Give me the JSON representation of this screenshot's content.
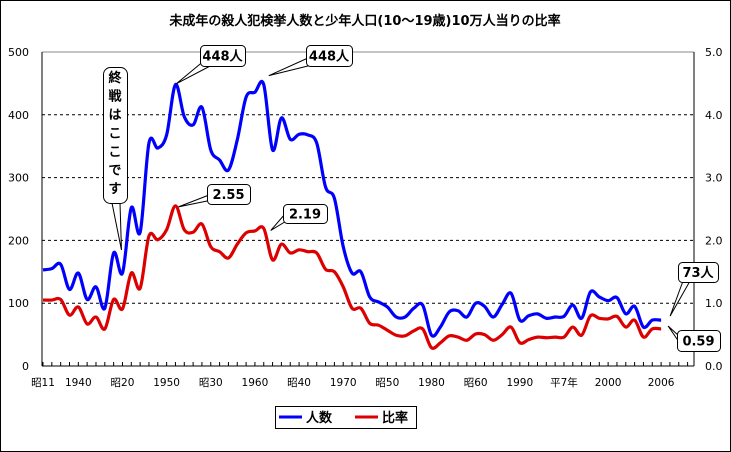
{
  "chart_data": {
    "type": "line",
    "title": "未成年の殺人犯検挙人数と少年人口(10～19歳)10万人当りの比率",
    "x": [
      1936,
      1937,
      1938,
      1939,
      1940,
      1941,
      1942,
      1943,
      1944,
      1945,
      1946,
      1947,
      1948,
      1949,
      1950,
      1951,
      1952,
      1953,
      1954,
      1955,
      1956,
      1957,
      1958,
      1959,
      1960,
      1961,
      1962,
      1963,
      1964,
      1965,
      1966,
      1967,
      1968,
      1969,
      1970,
      1971,
      1972,
      1973,
      1974,
      1975,
      1976,
      1977,
      1978,
      1979,
      1980,
      1981,
      1982,
      1983,
      1984,
      1985,
      1986,
      1987,
      1988,
      1989,
      1990,
      1991,
      1992,
      1993,
      1994,
      1995,
      1996,
      1997,
      1998,
      1999,
      2000,
      2001,
      2002,
      2003,
      2004,
      2005,
      2006
    ],
    "series": [
      {
        "name": "人数",
        "axis": "left",
        "color": "#0000ff",
        "values": [
          153,
          155,
          162,
          122,
          148,
          106,
          126,
          92,
          180,
          148,
          252,
          213,
          355,
          347,
          368,
          448,
          397,
          384,
          412,
          344,
          328,
          312,
          360,
          428,
          436,
          448,
          344,
          395,
          361,
          369,
          368,
          355,
          285,
          267,
          190,
          148,
          150,
          110,
          102,
          94,
          78,
          78,
          92,
          97,
          49,
          62,
          86,
          88,
          78,
          100,
          95,
          78,
          98,
          116,
          73,
          80,
          83,
          76,
          78,
          79,
          97,
          76,
          118,
          110,
          104,
          109,
          83,
          95,
          62,
          73,
          73
        ]
      },
      {
        "name": "比率",
        "axis": "right",
        "color": "#dd0000",
        "values": [
          1.05,
          1.05,
          1.06,
          0.81,
          0.94,
          0.67,
          0.78,
          0.59,
          1.06,
          0.91,
          1.48,
          1.24,
          2.07,
          2.01,
          2.17,
          2.55,
          2.17,
          2.13,
          2.26,
          1.9,
          1.82,
          1.72,
          1.94,
          2.12,
          2.15,
          2.19,
          1.69,
          1.94,
          1.8,
          1.85,
          1.82,
          1.8,
          1.54,
          1.5,
          1.26,
          0.92,
          0.92,
          0.68,
          0.65,
          0.57,
          0.49,
          0.48,
          0.56,
          0.59,
          0.29,
          0.37,
          0.48,
          0.46,
          0.41,
          0.51,
          0.5,
          0.41,
          0.5,
          0.62,
          0.37,
          0.42,
          0.46,
          0.45,
          0.46,
          0.46,
          0.62,
          0.49,
          0.8,
          0.76,
          0.75,
          0.79,
          0.62,
          0.73,
          0.46,
          0.59,
          0.59
        ]
      }
    ],
    "x_ticks": [
      {
        "year": 1936,
        "label": "昭11"
      },
      {
        "year": 1940,
        "label": "1940"
      },
      {
        "year": 1945,
        "label": "昭20"
      },
      {
        "year": 1950,
        "label": "1950"
      },
      {
        "year": 1955,
        "label": "昭30"
      },
      {
        "year": 1960,
        "label": "1960"
      },
      {
        "year": 1965,
        "label": "昭40"
      },
      {
        "year": 1970,
        "label": "1970"
      },
      {
        "year": 1975,
        "label": "昭50"
      },
      {
        "year": 1980,
        "label": "1980"
      },
      {
        "year": 1985,
        "label": "昭60"
      },
      {
        "year": 1990,
        "label": "1990"
      },
      {
        "year": 1995,
        "label": "平7年"
      },
      {
        "year": 2000,
        "label": "2000"
      },
      {
        "year": 2006,
        "label": "2006"
      }
    ],
    "x_range": [
      1936,
      2009
    ],
    "y_left": {
      "range": [
        0,
        500
      ],
      "ticks": [
        "0",
        "100",
        "200",
        "300",
        "400",
        "500"
      ]
    },
    "y_right": {
      "range": [
        0,
        5.0
      ],
      "ticks": [
        "0.0",
        "1.0",
        "2.0",
        "3.0",
        "4.0",
        "5.0"
      ]
    },
    "grid": "horizontal dashed",
    "legend": {
      "position": "bottom",
      "items": [
        "人数",
        "比率"
      ]
    },
    "annotations": {
      "peak1": {
        "text": "448人",
        "year": 1951
      },
      "peak2": {
        "text": "448人",
        "year": 1961
      },
      "rate1": {
        "text": "2.55",
        "year": 1951
      },
      "rate2": {
        "text": "2.19",
        "year": 1961
      },
      "last_count": {
        "text": "73人",
        "year": 2006
      },
      "last_rate": {
        "text": "0.59",
        "year": 2006
      },
      "war_end": {
        "text": "終戦はここです",
        "year": 1945
      }
    }
  }
}
